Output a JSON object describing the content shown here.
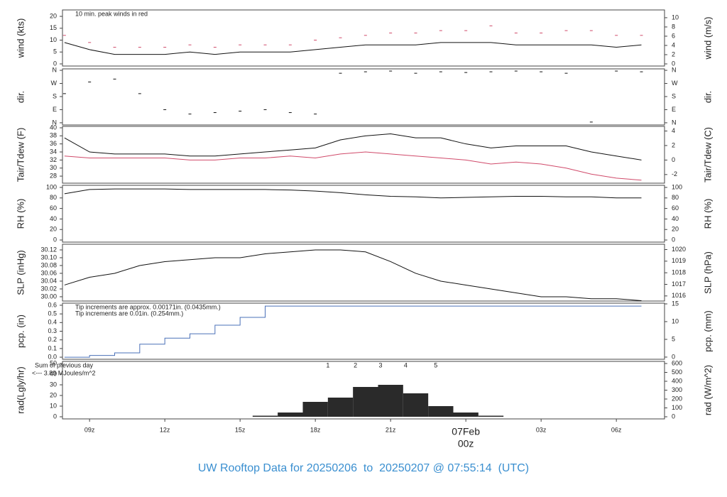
{
  "title": "UW Rooftop Data for 20250206  to  20250207 @ 07:55:14  (UTC)",
  "chart_data": [
    {
      "type": "line",
      "ylabel": "wind (kts)",
      "y2label": "wind (m/s)",
      "xlim": [
        7.92,
        31.92
      ],
      "ylim": [
        -0.9,
        22.7
      ],
      "yticks": [
        0,
        5,
        10,
        15,
        20
      ],
      "y2lim": [
        -0.46,
        11.68
      ],
      "y2ticks": [
        0,
        2,
        4,
        6,
        8,
        10
      ],
      "annotations": [
        {
          "text": "10 min. peak winds in red",
          "color": "#d04a6a"
        }
      ],
      "x": [
        8,
        9,
        10,
        11,
        12,
        13,
        14,
        15,
        16,
        17,
        18,
        19,
        20,
        21,
        22,
        23,
        24,
        25,
        26,
        27,
        28,
        29,
        30,
        31
      ],
      "series": [
        {
          "mode": "line",
          "color": "#111111",
          "values": [
            9,
            6,
            4,
            4,
            4,
            5,
            4,
            5,
            5,
            5,
            6,
            7,
            8,
            8,
            8,
            9,
            9,
            9,
            8,
            8,
            8,
            8,
            7,
            8
          ]
        },
        {
          "mode": "points",
          "color": "#d04a6a",
          "values": [
            12,
            9,
            7,
            7,
            7,
            8,
            7,
            8,
            8,
            8,
            10,
            11,
            12,
            13,
            13,
            14,
            14,
            16,
            13,
            13,
            14,
            14,
            12,
            12
          ]
        }
      ]
    },
    {
      "type": "scatter",
      "ylabel": "dir.",
      "y2label": "dir.",
      "xlim": [
        7.92,
        31.92
      ],
      "ylim": [
        -15,
        370
      ],
      "yticks": [
        {
          "value": 0,
          "label": "N"
        },
        {
          "value": 90,
          "label": "E"
        },
        {
          "value": 180,
          "label": "S"
        },
        {
          "value": 270,
          "label": "W"
        },
        {
          "value": 360,
          "label": "N"
        }
      ],
      "y2lim": [
        -15,
        370
      ],
      "y2ticks": [
        {
          "value": 0,
          "label": "N"
        },
        {
          "value": 90,
          "label": "E"
        },
        {
          "value": 180,
          "label": "S"
        },
        {
          "value": 270,
          "label": "W"
        },
        {
          "value": 360,
          "label": "N"
        }
      ],
      "x": [
        8,
        9,
        10,
        11,
        12,
        13,
        14,
        15,
        16,
        17,
        18,
        19,
        20,
        21,
        22,
        23,
        24,
        25,
        26,
        27,
        28,
        29,
        30,
        31
      ],
      "series": [
        {
          "mode": "points",
          "color": "#111111",
          "values": [
            200,
            280,
            300,
            200,
            90,
            60,
            70,
            80,
            90,
            70,
            60,
            340,
            350,
            355,
            340,
            350,
            345,
            350,
            355,
            350,
            340,
            5,
            355,
            350
          ]
        }
      ]
    },
    {
      "type": "line",
      "ylabel": "Tair/Tdew (F)",
      "y2label": "Tair/Tdew (C)",
      "xlim": [
        7.92,
        31.92
      ],
      "ylim": [
        26.25,
        40.35
      ],
      "yticks": [
        28,
        30,
        32,
        34,
        36,
        38,
        40
      ],
      "y2lim": [
        -3.19,
        4.64
      ],
      "y2ticks": [
        -2,
        0,
        2,
        4
      ],
      "x": [
        8,
        9,
        10,
        11,
        12,
        13,
        14,
        15,
        16,
        17,
        18,
        19,
        20,
        21,
        22,
        23,
        24,
        25,
        26,
        27,
        28,
        29,
        30,
        31
      ],
      "series": [
        {
          "mode": "line",
          "color": "#111111",
          "values": [
            37.5,
            34,
            33.5,
            33.5,
            33.5,
            33,
            33,
            33.5,
            34,
            34.5,
            35,
            37,
            38,
            38.5,
            37.5,
            37.5,
            36,
            35,
            35.5,
            35.5,
            35.5,
            34,
            33,
            32
          ]
        },
        {
          "mode": "line",
          "color": "#d04a6a",
          "values": [
            33,
            32.5,
            32.5,
            32.5,
            32.5,
            32,
            32,
            32.5,
            32.5,
            33,
            32.5,
            33.5,
            34,
            33.5,
            33,
            32.5,
            32,
            31,
            31.5,
            31,
            30,
            28.5,
            27.5,
            27
          ]
        }
      ]
    },
    {
      "type": "line",
      "ylabel": "RH (%)",
      "y2label": "RH (%)",
      "xlim": [
        7.92,
        31.92
      ],
      "ylim": [
        -4,
        104
      ],
      "yticks": [
        0,
        20,
        40,
        60,
        80,
        100
      ],
      "y2lim": [
        -4,
        104
      ],
      "y2ticks": [
        0,
        20,
        40,
        60,
        80,
        100
      ],
      "x": [
        8,
        9,
        10,
        11,
        12,
        13,
        14,
        15,
        16,
        17,
        18,
        19,
        20,
        21,
        22,
        23,
        24,
        25,
        26,
        27,
        28,
        29,
        30,
        31
      ],
      "series": [
        {
          "mode": "line",
          "color": "#111111",
          "values": [
            88,
            96,
            97,
            97,
            97,
            96,
            96,
            96,
            96,
            95,
            93,
            90,
            86,
            83,
            82,
            80,
            81,
            82,
            83,
            83,
            82,
            82,
            80,
            80
          ]
        }
      ]
    },
    {
      "type": "line",
      "ylabel": "SLP (inHg)",
      "y2label": "SLP (hPa)",
      "xlim": [
        7.92,
        31.92
      ],
      "ylim": [
        29.989,
        30.1345
      ],
      "yticks": [
        {
          "value": 30,
          "label": "30.00"
        },
        30.02,
        30.04,
        30.06,
        30.08,
        {
          "value": 30.1,
          "label": "30.10"
        },
        30.12
      ],
      "y2lim": [
        1015.56,
        1020.46
      ],
      "y2ticks": [
        1016,
        1017,
        1018,
        1019,
        1020
      ],
      "x": [
        8,
        9,
        10,
        11,
        12,
        13,
        14,
        15,
        16,
        17,
        18,
        19,
        20,
        21,
        22,
        23,
        24,
        25,
        26,
        27,
        28,
        29,
        30,
        31
      ],
      "series": [
        {
          "mode": "line",
          "color": "#111111",
          "values": [
            30.03,
            30.05,
            30.06,
            30.08,
            30.09,
            30.095,
            30.1,
            30.1,
            30.11,
            30.115,
            30.12,
            30.12,
            30.115,
            30.09,
            30.06,
            30.04,
            30.03,
            30.02,
            30.01,
            30,
            30,
            29.995,
            29.995,
            29.99
          ]
        }
      ]
    },
    {
      "type": "line",
      "ylabel": "pcp. (in)",
      "y2label": "pcp. (mm)",
      "xlim": [
        7.92,
        31.92
      ],
      "ylim": [
        -0.024,
        0.624
      ],
      "yticks": [
        {
          "value": 0,
          "label": "0.0"
        },
        0.1,
        0.2,
        0.3,
        0.4,
        0.5,
        0.6
      ],
      "y2lim": [
        -0.61,
        15.2
      ],
      "y2ticks": [
        0,
        5,
        10,
        15
      ],
      "annotations": [
        {
          "text": "Tip increments are approx. 0.00171in. (0.0435mm.)",
          "color": "#d04a6a"
        },
        {
          "text": "Tip increments are 0.01in. (0.254mm.)",
          "color": "#3a8fd0"
        }
      ],
      "x": [
        8,
        9,
        10,
        11,
        12,
        13,
        14,
        15,
        16,
        17,
        18,
        19,
        20,
        21,
        22,
        23,
        24,
        25,
        26,
        27,
        28,
        29,
        30,
        31
      ],
      "series": [
        {
          "mode": "step",
          "color": "#4a70b8",
          "values": [
            0,
            0.02,
            0.05,
            0.15,
            0.22,
            0.27,
            0.37,
            0.46,
            0.59,
            0.59,
            0.59,
            0.59,
            0.59,
            0.59,
            0.59,
            0.59,
            0.59,
            0.59,
            0.59,
            0.59,
            0.59,
            0.59,
            0.59,
            0.59
          ]
        }
      ]
    },
    {
      "type": "bar",
      "ylabel": "rad(Lgly/hr)",
      "y2label": "rad (W/m^2)",
      "xlim": [
        7.92,
        31.92
      ],
      "ylim": [
        -2,
        52
      ],
      "yticks": [
        0,
        10,
        20,
        30,
        40,
        50
      ],
      "y2lim": [
        -24,
        624
      ],
      "y2ticks": [
        0,
        100,
        200,
        300,
        400,
        500,
        600
      ],
      "side_notes": [
        {
          "text": "Sum of previous day",
          "color": "#a030d0"
        },
        {
          "text": "<--- 3.89 MJoules/m^2",
          "color": "#a030d0"
        }
      ],
      "markers": [
        {
          "label": "1",
          "x": 18.5
        },
        {
          "label": "2",
          "x": 19.6
        },
        {
          "label": "3",
          "x": 20.6
        },
        {
          "label": "4",
          "x": 21.6
        },
        {
          "label": "5",
          "x": 22.8
        }
      ],
      "marker_color": "#a030d0",
      "xticks": [
        {
          "value": 9,
          "label": "09z"
        },
        {
          "value": 12,
          "label": "12z"
        },
        {
          "value": 15,
          "label": "15z"
        },
        {
          "value": 18,
          "label": "18z"
        },
        {
          "value": 21,
          "label": "21z"
        },
        {
          "value": 24,
          "label": "00z",
          "color": "#d04a6a"
        },
        {
          "value": 27,
          "label": "03z"
        },
        {
          "value": 30,
          "label": "06z"
        }
      ],
      "date_label": {
        "text": "07Feb",
        "x": 24,
        "color": "#d04a6a"
      },
      "x": [
        8,
        9,
        10,
        11,
        12,
        13,
        14,
        15,
        16,
        17,
        18,
        19,
        20,
        21,
        22,
        23,
        24,
        25,
        26,
        27,
        28,
        29,
        30,
        31
      ],
      "series": [
        {
          "mode": "bar",
          "color": "#2a2a2a",
          "values": [
            0,
            0,
            0,
            0,
            0,
            0,
            0,
            0,
            1,
            4,
            14,
            18,
            28,
            30,
            22,
            10,
            4,
            1,
            0,
            0,
            0,
            0,
            0,
            0
          ]
        }
      ]
    }
  ]
}
